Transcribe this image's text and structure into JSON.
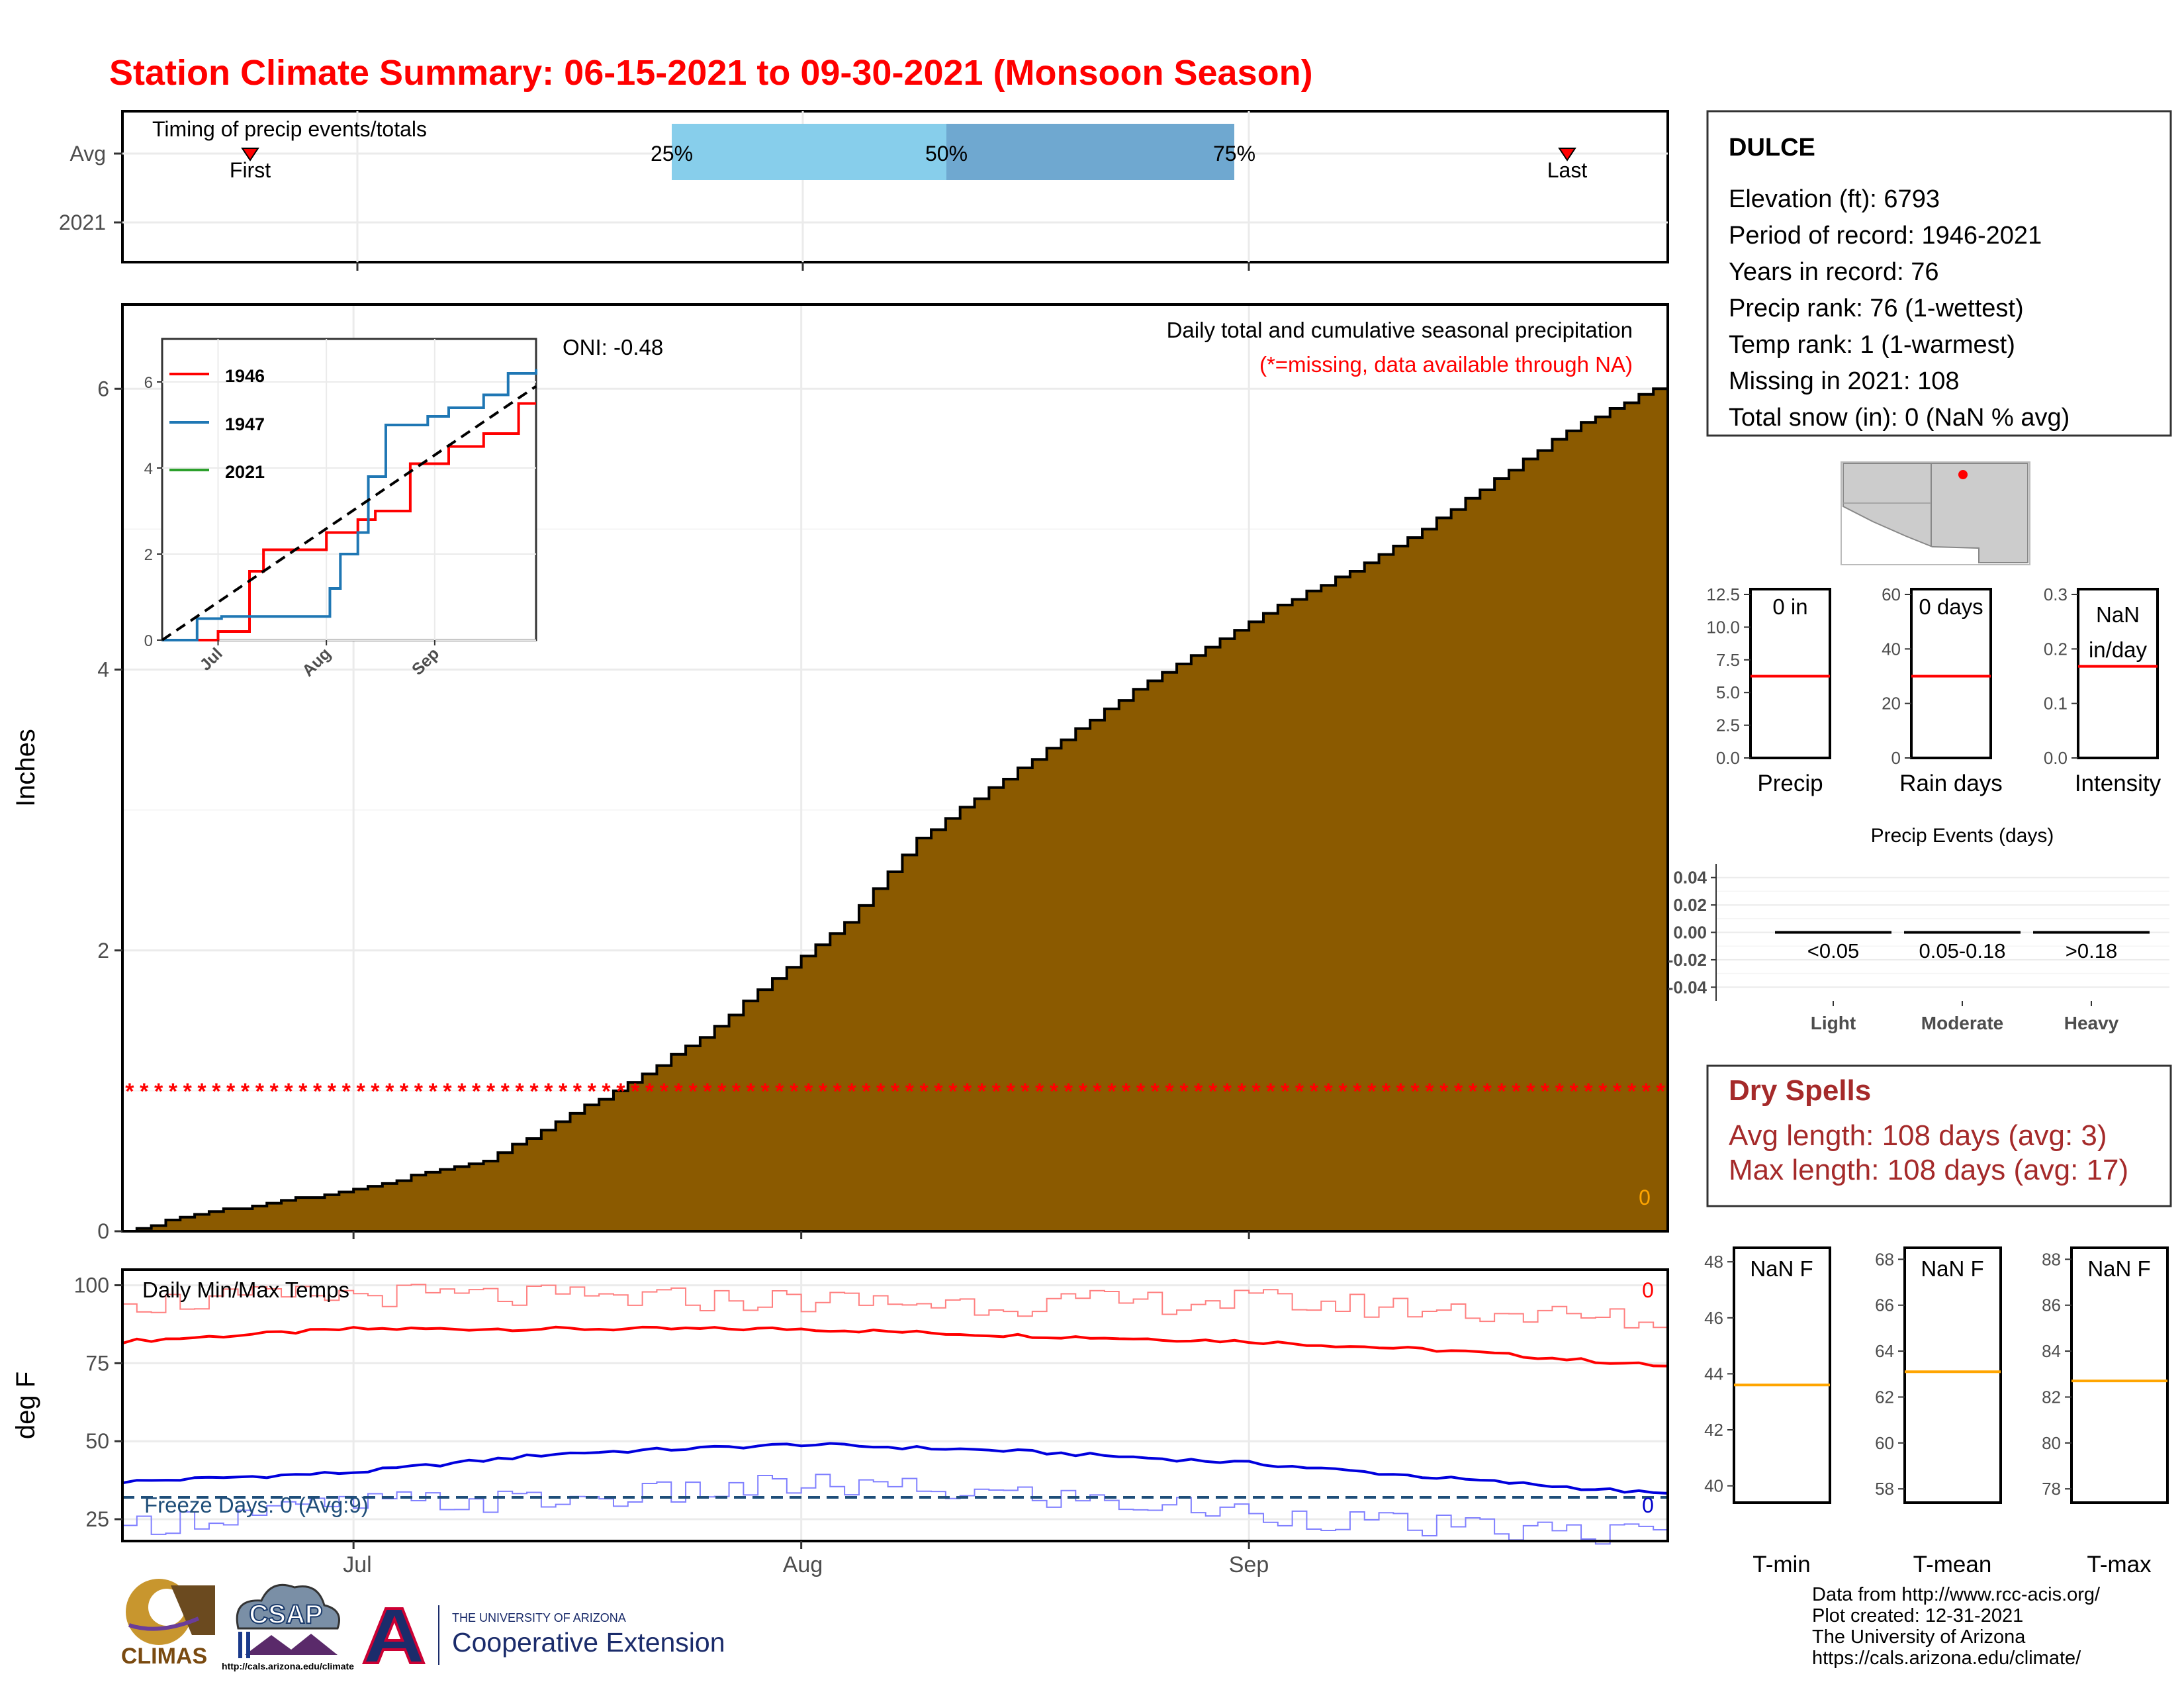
{
  "title": "Station Climate Summary: 06-15-2021 to 09-30-2021 (Monsoon Season)",
  "colors": {
    "title": "#ff0000",
    "precip_fill": "#8b5a00",
    "missing_star": "#ff0000",
    "band_light": "#87ceeb",
    "band_dark": "#6fa8d0",
    "tmax_avg": "#ff0000",
    "tmin_avg": "#0000dd",
    "freeze_line": "#1f4e79",
    "dry_spells": "#a52a2a",
    "avg_marker": "#ff8c00"
  },
  "timing": {
    "panel_title": "Timing of precip events/totals",
    "row_labels": [
      "Avg",
      "2021"
    ],
    "first_label": "First",
    "last_label": "Last",
    "first_date": "06-22",
    "last_date": "09-24",
    "pct_labels": [
      "25%",
      "50%",
      "75%"
    ],
    "p25_date": "07-13",
    "p50_date": "07-22",
    "p75_date": "08-02"
  },
  "main": {
    "y_axis_label": "Inches",
    "header": "Daily total and cumulative seasonal precipitation",
    "missing_note": "(*=missing, data available through NA)",
    "oni": "ONI: -0.48",
    "current_value": "0",
    "y_ticks": [
      "0",
      "2",
      "4",
      "6"
    ],
    "missing_star_level": 1.0
  },
  "inset": {
    "legend": [
      "1946",
      "1947",
      "2021"
    ],
    "legend_colors": [
      "#ff0000",
      "#1f77b4",
      "#2ca02c"
    ],
    "y_ticks": [
      "0",
      "2",
      "4",
      "6"
    ],
    "x_ticks": [
      "Jul",
      "Aug",
      "Sep"
    ]
  },
  "temps": {
    "y_axis_label": "deg F",
    "title": "Daily Min/Max Temps",
    "freeze_text": "Freeze Days: 0 (Avg:9)",
    "max_count": "0",
    "min_count": "0",
    "y_ticks": [
      "100",
      "75",
      "50",
      "25"
    ],
    "freeze_level": 32
  },
  "x_axis": {
    "month_labels": [
      "Jul",
      "Aug",
      "Sep"
    ]
  },
  "station": {
    "name": "DULCE",
    "lines": [
      "Elevation (ft): 6793",
      "Period of record: 1946-2021",
      "Years in record: 76",
      "Precip rank: 76 (1-wettest)",
      "Temp rank: 1 (1-warmest)",
      "Missing in 2021: 108",
      "Total snow (in): 0 (NaN % avg)"
    ]
  },
  "mini_bars": [
    {
      "label": "Precip",
      "value_text": "0 in",
      "ticks": [
        "12.5",
        "10.0",
        "7.5",
        "5.0",
        "2.5",
        "0.0"
      ],
      "avg_fraction": 0.5
    },
    {
      "label": "Rain days",
      "value_text": "0 days",
      "ticks": [
        "60",
        "40",
        "20",
        "0"
      ],
      "avg_fraction": 0.5
    },
    {
      "label": "Intensity",
      "value_text_lines": [
        "NaN",
        "in/day"
      ],
      "ticks": [
        "0.3",
        "0.2",
        "0.1",
        "0.0"
      ],
      "avg_fraction": 0.56
    }
  ],
  "events": {
    "title": "Precip Events (days)",
    "y_ticks": [
      "0.04",
      "0.02",
      "0.00",
      "-0.02",
      "-0.04"
    ],
    "categories": [
      "Light",
      "Moderate",
      "Heavy"
    ],
    "ranges": [
      "<0.05",
      "0.05-0.18",
      ">0.18"
    ],
    "values": [
      0,
      0,
      0
    ]
  },
  "dry_spells": {
    "title": "Dry Spells",
    "avg_line": "Avg length: 108 days (avg: 3)",
    "max_line": "Max length: 108 days (avg: 17)"
  },
  "temp_bars": [
    {
      "label": "T-min",
      "value_text": "NaN F",
      "ticks": [
        "48",
        "46",
        "44",
        "42",
        "40"
      ],
      "avg_value": 43.6
    },
    {
      "label": "T-mean",
      "value_text": "NaN F",
      "ticks": [
        "68",
        "66",
        "64",
        "62",
        "60",
        "58"
      ],
      "avg_value": 63.1
    },
    {
      "label": "T-max",
      "value_text": "NaN F",
      "ticks": [
        "88",
        "86",
        "84",
        "82",
        "80",
        "78"
      ],
      "avg_value": 82.7
    }
  ],
  "footer": {
    "credits": [
      "Data from http://www.rcc-acis.org/",
      "Plot created: 12-31-2021",
      "The University of Arizona",
      "https://cals.arizona.edu/climate/"
    ],
    "logos": {
      "climas": "CLIMAS",
      "csap": "CSAP",
      "csap_url": "http://cals.arizona.edu/climate",
      "ua_line1": "THE UNIVERSITY OF ARIZONA",
      "ua_line2": "Cooperative Extension"
    }
  },
  "chart_data": [
    {
      "type": "area",
      "title": "Daily total and cumulative seasonal precipitation",
      "ylabel": "Inches",
      "ylim": [
        0,
        6.6
      ],
      "x_start": "2021-06-15",
      "x_end": "2021-09-30",
      "series": [
        {
          "name": "",
          "x": [
            "06-15",
            "06-20",
            "06-25",
            "06-30",
            "07-05",
            "07-10",
            "07-15",
            "07-20",
            "07-25",
            "07-30",
            "08-04",
            "08-09",
            "08-14",
            "08-19",
            "08-24",
            "08-29",
            "09-03",
            "09-08",
            "09-13",
            "09-18",
            "09-23",
            "09-30"
          ],
          "values": [
            0.0,
            0.12,
            0.2,
            0.28,
            0.39,
            0.5,
            0.78,
            1.06,
            1.38,
            1.8,
            2.2,
            2.8,
            3.15,
            3.5,
            3.85,
            4.15,
            4.45,
            4.7,
            5.0,
            5.35,
            5.7,
            6.05
          ]
        }
      ]
    },
    {
      "type": "line",
      "title": "",
      "ylim": [
        0,
        7
      ],
      "x_ticks": [
        "Jul",
        "Aug",
        "Sep"
      ],
      "series": [
        {
          "name": "1946",
          "x": [
            "06-15",
            "06-22",
            "07-01",
            "07-08",
            "07-10",
            "07-14",
            "07-22",
            "08-01",
            "08-10",
            "08-15",
            "08-25",
            "09-05",
            "09-15",
            "09-25",
            "09-30"
          ],
          "values": [
            0,
            0,
            0.2,
            0.2,
            1.6,
            2.1,
            2.1,
            2.5,
            2.8,
            3.0,
            4.1,
            4.5,
            4.8,
            5.5,
            5.5
          ]
        },
        {
          "name": "1947",
          "x": [
            "06-15",
            "06-25",
            "07-02",
            "07-20",
            "07-31",
            "08-02",
            "08-05",
            "08-10",
            "08-13",
            "08-18",
            "08-30",
            "09-05",
            "09-15",
            "09-22",
            "09-30"
          ],
          "values": [
            0,
            0.5,
            0.55,
            0.55,
            0.55,
            1.2,
            2.0,
            2.5,
            3.8,
            5.0,
            5.2,
            5.4,
            5.7,
            6.2,
            6.3
          ]
        },
        {
          "name": "average",
          "x": [
            "06-15",
            "09-30"
          ],
          "values": [
            0,
            5.9
          ]
        }
      ]
    },
    {
      "type": "line",
      "title": "Daily Min/Max Temps",
      "ylabel": "deg F",
      "ylim": [
        18,
        105
      ],
      "series": [
        {
          "name": "avg max",
          "x": [
            "06-15",
            "07-01",
            "07-15",
            "08-01",
            "08-15",
            "09-01",
            "09-15",
            "09-30"
          ],
          "values": [
            82,
            86,
            86,
            86,
            84,
            82,
            79,
            74
          ]
        },
        {
          "name": "avg min",
          "x": [
            "06-15",
            "07-01",
            "07-15",
            "08-01",
            "08-15",
            "09-01",
            "09-15",
            "09-30"
          ],
          "values": [
            37,
            40,
            46,
            49,
            47,
            43,
            38,
            33
          ]
        },
        {
          "name": "record max",
          "x": [
            "06-15",
            "07-01",
            "07-15",
            "08-01",
            "08-15",
            "09-01",
            "09-15",
            "09-30"
          ],
          "values": [
            94,
            97,
            96,
            95,
            94,
            95,
            92,
            88
          ]
        },
        {
          "name": "record min",
          "x": [
            "06-15",
            "07-01",
            "07-15",
            "08-01",
            "08-15",
            "09-01",
            "09-15",
            "09-30"
          ],
          "values": [
            23,
            30,
            31,
            36,
            33,
            27,
            22,
            20
          ]
        }
      ]
    }
  ]
}
